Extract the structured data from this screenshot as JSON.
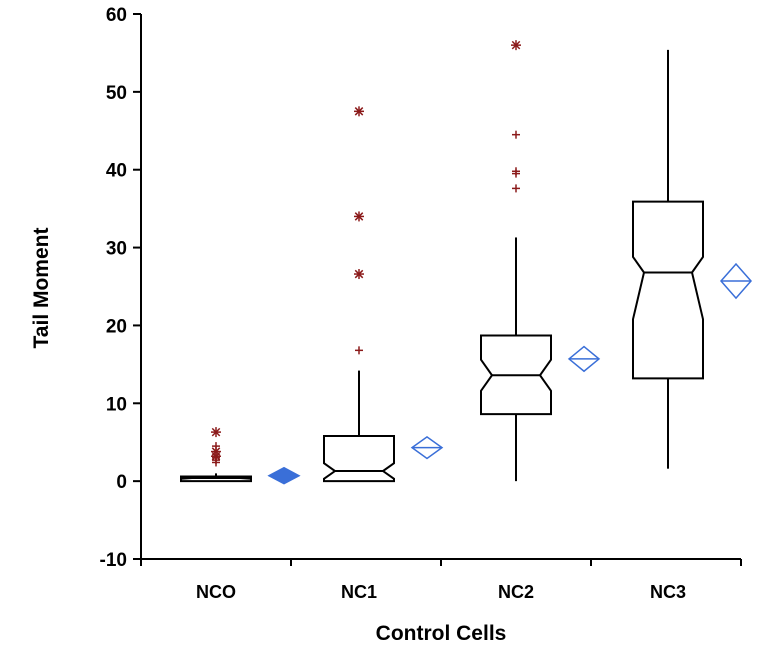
{
  "chart_data": {
    "type": "boxplot",
    "title": "",
    "xlabel": "Control Cells",
    "ylabel": "Tail Moment",
    "ylim": [
      -10,
      60
    ],
    "yticks": [
      -10,
      0,
      10,
      20,
      30,
      40,
      50,
      60
    ],
    "grid": false,
    "categories": [
      "NCO",
      "NC1",
      "NC2",
      "NC3"
    ],
    "boxes": [
      {
        "name": "NCO",
        "whisker_low": 0,
        "q1": 0,
        "median": 0.4,
        "q3": 0.6,
        "whisker_high": 1.0,
        "notch_low": 0.3,
        "notch_high": 0.5,
        "outliers_far": [
          6.3,
          3.8,
          3.2
        ],
        "outliers_near": [
          4.5,
          3.0,
          2.7,
          2.4
        ],
        "mean": 0.7,
        "ci_low": 0.6,
        "ci_high": 0.8
      },
      {
        "name": "NC1",
        "whisker_low": 0,
        "q1": 0,
        "median": 1.3,
        "q3": 5.8,
        "whisker_high": 14.2,
        "notch_low": 0.3,
        "notch_high": 2.3,
        "outliers_far": [
          47.5,
          34.0,
          26.6
        ],
        "outliers_near": [
          16.8
        ],
        "mean": 4.3,
        "ci_low": 3.3,
        "ci_high": 5.3
      },
      {
        "name": "NC2",
        "whisker_low": 0,
        "q1": 8.6,
        "median": 13.6,
        "q3": 18.7,
        "whisker_high": 31.3,
        "notch_low": 11.6,
        "notch_high": 15.6,
        "outliers_far": [
          56.0
        ],
        "outliers_near": [
          44.5,
          39.8,
          39.5,
          37.6
        ],
        "mean": 15.7,
        "ci_low": 14.5,
        "ci_high": 16.9
      },
      {
        "name": "NC3",
        "whisker_low": 1.6,
        "q1": 13.2,
        "median": 26.8,
        "q3": 35.9,
        "whisker_high": 55.4,
        "notch_low": 20.8,
        "notch_high": 28.8,
        "outliers_far": [],
        "outliers_near": [],
        "mean": 25.7,
        "ci_low": 23.9,
        "ci_high": 27.5
      }
    ],
    "colors": {
      "box": "#000000",
      "outlier": "#8b1a1a",
      "mean_marker": "#3a6fd8"
    }
  }
}
